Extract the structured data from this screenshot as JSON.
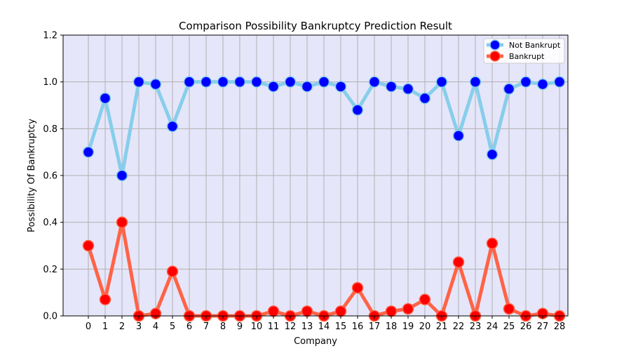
{
  "chart_data": {
    "type": "line",
    "title": "Comparison Possibility Bankruptcy Prediction Result",
    "xlabel": "Company",
    "ylabel": "Possibility Of Bankruptcy",
    "x": [
      0,
      1,
      2,
      3,
      4,
      5,
      6,
      7,
      8,
      9,
      10,
      11,
      12,
      13,
      14,
      15,
      16,
      17,
      18,
      19,
      20,
      21,
      22,
      23,
      24,
      25,
      26,
      27,
      28
    ],
    "ylim": [
      0,
      1.2
    ],
    "yticks": [
      "0.0",
      "0.2",
      "0.4",
      "0.6",
      "0.8",
      "1.0",
      "1.2"
    ],
    "grid": true,
    "legend_position": "top-right",
    "background_color": "#e6e6fa",
    "series": [
      {
        "name": "Not Bankrupt",
        "line_color": "#87ceeb",
        "marker_color": "#0000ff",
        "values": [
          0.7,
          0.93,
          0.6,
          1.0,
          0.99,
          0.81,
          1.0,
          1.0,
          1.0,
          1.0,
          1.0,
          0.98,
          1.0,
          0.98,
          1.0,
          0.98,
          0.88,
          1.0,
          0.98,
          0.97,
          0.93,
          1.0,
          0.77,
          1.0,
          0.69,
          0.97,
          1.0,
          0.99,
          1.0
        ]
      },
      {
        "name": "Bankrupt",
        "line_color": "#ff6347",
        "marker_color": "#ff0000",
        "values": [
          0.3,
          0.07,
          0.4,
          0.0,
          0.01,
          0.19,
          0.0,
          0.0,
          0.0,
          0.0,
          0.0,
          0.02,
          0.0,
          0.02,
          0.0,
          0.02,
          0.12,
          0.0,
          0.02,
          0.03,
          0.07,
          0.0,
          0.23,
          0.0,
          0.31,
          0.03,
          0.0,
          0.01,
          0.0
        ]
      }
    ]
  }
}
